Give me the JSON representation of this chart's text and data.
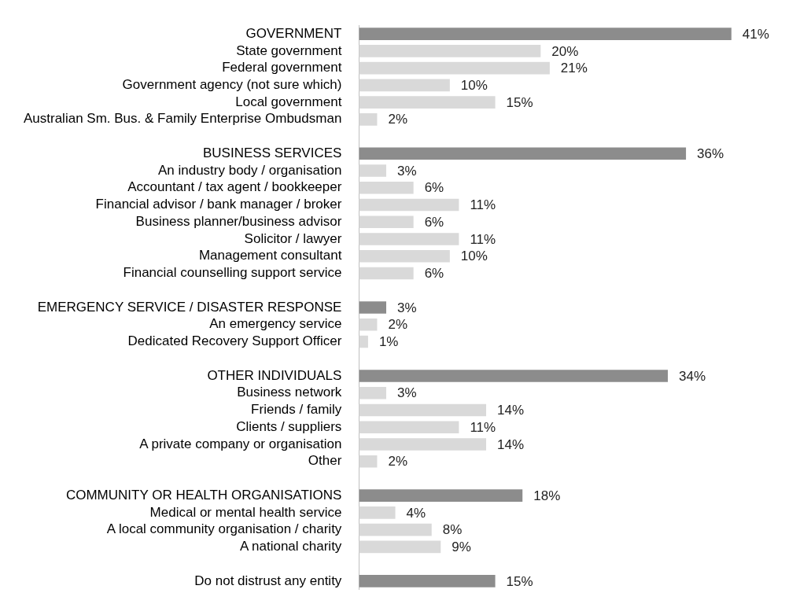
{
  "chart_data": {
    "type": "bar",
    "orientation": "horizontal",
    "tick_labels": "y",
    "grid": false,
    "legend": false,
    "categories": [
      "GOVERNMENT",
      "State government",
      "Federal government",
      "Government agency (not sure which)",
      "Local government",
      "Australian Sm. Bus. & Family Enterprise Ombudsman",
      null,
      "BUSINESS SERVICES",
      "An industry body / organisation",
      "Accountant / tax agent / bookkeeper",
      "Financial advisor / bank manager / broker",
      "Business planner/business advisor",
      "Solicitor / lawyer",
      "Management consultant",
      "Financial counselling support service",
      null,
      "EMERGENCY SERVICE / DISASTER RESPONSE",
      "An emergency service",
      "Dedicated Recovery Support Officer",
      null,
      "OTHER INDIVIDUALS",
      "Business network",
      "Friends / family",
      "Clients / suppliers",
      "A private company or organisation",
      "Other",
      null,
      "COMMUNITY OR HEALTH ORGANISATIONS",
      "Medical or mental health service",
      "A local community organisation / charity",
      "A national charity",
      null,
      "Do not distrust any entity"
    ],
    "values": [
      41,
      20,
      21,
      10,
      15,
      2,
      null,
      36,
      3,
      6,
      11,
      6,
      11,
      10,
      6,
      null,
      3,
      2,
      1,
      null,
      34,
      3,
      14,
      11,
      14,
      2,
      null,
      18,
      4,
      8,
      9,
      null,
      15
    ],
    "value_labels": [
      "41%",
      "20%",
      "21%",
      "10%",
      "15%",
      "2%",
      null,
      "36%",
      "3%",
      "6%",
      "11%",
      "6%",
      "11%",
      "10%",
      "6%",
      null,
      "3%",
      "2%",
      "1%",
      null,
      "34%",
      "3%",
      "14%",
      "11%",
      "14%",
      "2%",
      null,
      "18%",
      "4%",
      "8%",
      "9%",
      null,
      "15%"
    ],
    "colors": [
      "#8c8c8c",
      "#d9d9d9",
      "#d9d9d9",
      "#d9d9d9",
      "#d9d9d9",
      "#d9d9d9",
      null,
      "#8c8c8c",
      "#d9d9d9",
      "#d9d9d9",
      "#d9d9d9",
      "#d9d9d9",
      "#d9d9d9",
      "#d9d9d9",
      "#d9d9d9",
      null,
      "#8c8c8c",
      "#d9d9d9",
      "#d9d9d9",
      null,
      "#8c8c8c",
      "#d9d9d9",
      "#d9d9d9",
      "#d9d9d9",
      "#d9d9d9",
      "#d9d9d9",
      null,
      "#8c8c8c",
      "#d9d9d9",
      "#d9d9d9",
      "#d9d9d9",
      null,
      "#8c8c8c"
    ]
  }
}
